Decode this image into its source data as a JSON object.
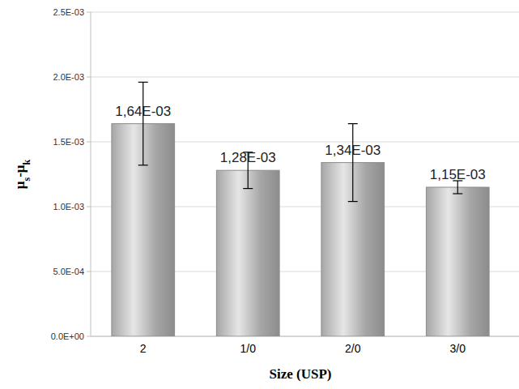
{
  "chart_data": {
    "type": "bar",
    "x_label": "Size (USP)",
    "y_label": "μs-μk",
    "categories": [
      "2",
      "1/0",
      "2/0",
      "3/0"
    ],
    "values": [
      0.00164,
      0.00128,
      0.00134,
      0.00115
    ],
    "value_labels": [
      "1,64E-03",
      "1,28E-03",
      "1,34E-03",
      "1,15E-03"
    ],
    "errors": [
      0.00032,
      0.00014,
      0.0003,
      5e-05
    ],
    "color": "#a6a6a6",
    "ylim": [
      0,
      0.0025
    ],
    "yticks": [
      {
        "value": 0,
        "label": "0.0E+00"
      },
      {
        "value": 0.0005,
        "label": "5.0E-04"
      },
      {
        "value": 0.001,
        "label": "1.0E-03"
      },
      {
        "value": 0.0015,
        "label": "1.5E-03"
      },
      {
        "value": 0.002,
        "label": "2.0E-03"
      },
      {
        "value": 0.0025,
        "label": "2.5E-03"
      }
    ],
    "grid": true,
    "data_labels": true
  }
}
